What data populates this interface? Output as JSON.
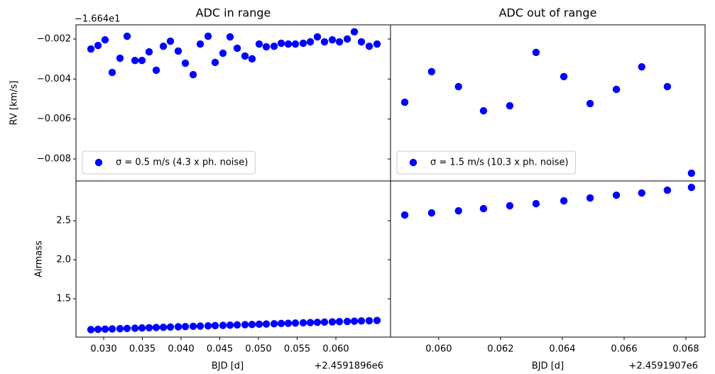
{
  "chart_data": [
    {
      "type": "scatter",
      "title": "ADC in range",
      "ylabel": "RV [km/s]",
      "y_offset_label": "−1.664e1",
      "xlim": [
        0.02642,
        0.06706
      ],
      "ylim": [
        -0.0091,
        -0.00129
      ],
      "yticks": [
        {
          "value": -0.002,
          "label": "−0.002"
        },
        {
          "value": -0.004,
          "label": "−0.004"
        },
        {
          "value": -0.006,
          "label": "−0.006"
        },
        {
          "value": -0.008,
          "label": "−0.008"
        }
      ],
      "legend": "lower left",
      "series": [
        {
          "name": "σ = 0.5 m/s (4.3 x ph. noise)",
          "color": "#0000ff",
          "x": [
            0.02835,
            0.02927,
            0.03018,
            0.0311,
            0.03211,
            0.03303,
            0.03404,
            0.03495,
            0.03587,
            0.03679,
            0.03771,
            0.03862,
            0.03963,
            0.04055,
            0.04156,
            0.04248,
            0.04349,
            0.0444,
            0.04541,
            0.04633,
            0.04725,
            0.04826,
            0.04917,
            0.05009,
            0.05101,
            0.05202,
            0.05294,
            0.05385,
            0.05477,
            0.05578,
            0.0567,
            0.05761,
            0.05853,
            0.05954,
            0.06046,
            0.06147,
            0.06239,
            0.0633,
            0.06431,
            0.06532
          ],
          "values": [
            -0.0025,
            -0.00232,
            -0.00204,
            -0.00367,
            -0.00296,
            -0.00186,
            -0.00307,
            -0.00307,
            -0.00264,
            -0.00356,
            -0.00236,
            -0.00211,
            -0.0026,
            -0.00321,
            -0.00378,
            -0.00225,
            -0.00186,
            -0.00317,
            -0.00271,
            -0.00189,
            -0.00246,
            -0.00285,
            -0.00299,
            -0.00225,
            -0.00239,
            -0.00236,
            -0.00221,
            -0.00225,
            -0.00225,
            -0.00221,
            -0.00214,
            -0.00189,
            -0.00214,
            -0.00204,
            -0.00214,
            -0.002,
            -0.00164,
            -0.00214,
            -0.00236,
            -0.00225
          ]
        }
      ]
    },
    {
      "type": "scatter",
      "title": "ADC out of range",
      "xlim": [
        0.05844,
        0.06862
      ],
      "ylim": [
        -0.0091,
        -0.00129
      ],
      "yticks": [
        -0.002,
        -0.004,
        -0.006,
        -0.008
      ],
      "ytick_labels": false,
      "legend": "lower left",
      "series": [
        {
          "name": "σ = 1.5 m/s (10.3 x ph. noise)",
          "color": "#0000ff",
          "x": [
            0.0589,
            0.05977,
            0.06064,
            0.06145,
            0.0623,
            0.06315,
            0.06405,
            0.0649,
            0.06575,
            0.06657,
            0.0674,
            0.06818
          ],
          "values": [
            -0.00516,
            -0.00363,
            -0.00438,
            -0.00559,
            -0.00534,
            -0.00267,
            -0.00388,
            -0.00523,
            -0.00452,
            -0.00339,
            -0.00438,
            -0.00871
          ]
        }
      ]
    },
    {
      "type": "scatter",
      "ylabel": "Airmass",
      "xlabel": "BJD [d]",
      "x_offset_label": "+2.4591896e6",
      "xlim": [
        0.02642,
        0.06706
      ],
      "ylim": [
        1.009,
        3.009
      ],
      "xticks": [
        {
          "value": 0.03,
          "label": "0.030"
        },
        0.035,
        {
          "value": 0.04,
          "label": "0.040"
        },
        0.045,
        {
          "value": 0.05,
          "label": "0.050"
        },
        0.055,
        {
          "value": 0.06,
          "label": "0.060"
        }
      ],
      "yticks": [
        1.5,
        {
          "value": 2,
          "label": "2.0"
        },
        2.5
      ],
      "series": [
        {
          "color": "#0000ff",
          "x": [
            0.02835,
            0.02927,
            0.03018,
            0.0311,
            0.03211,
            0.03303,
            0.03404,
            0.03495,
            0.03587,
            0.03679,
            0.03771,
            0.03862,
            0.03963,
            0.04055,
            0.04156,
            0.04248,
            0.04349,
            0.0444,
            0.04541,
            0.04633,
            0.04725,
            0.04826,
            0.04917,
            0.05009,
            0.05101,
            0.05202,
            0.05294,
            0.05385,
            0.05477,
            0.05578,
            0.0567,
            0.05761,
            0.05853,
            0.05954,
            0.06046,
            0.06147,
            0.06239,
            0.0633,
            0.06431,
            0.06532
          ],
          "values": [
            1.105,
            1.108,
            1.111,
            1.114,
            1.117,
            1.12,
            1.123,
            1.126,
            1.129,
            1.132,
            1.135,
            1.138,
            1.141,
            1.144,
            1.147,
            1.15,
            1.153,
            1.156,
            1.159,
            1.162,
            1.165,
            1.168,
            1.171,
            1.174,
            1.177,
            1.18,
            1.183,
            1.186,
            1.189,
            1.192,
            1.195,
            1.198,
            1.201,
            1.204,
            1.207,
            1.21,
            1.213,
            1.216,
            1.219,
            1.222
          ]
        }
      ]
    },
    {
      "type": "scatter",
      "xlabel": "BJD [d]",
      "x_offset_label": "+2.4591907e6",
      "xlim": [
        0.05844,
        0.06862
      ],
      "ylim": [
        1.009,
        3.009
      ],
      "xticks": [
        {
          "value": 0.06,
          "label": "0.060"
        },
        0.062,
        0.064,
        0.066,
        0.068
      ],
      "yticks": [
        1.5,
        2,
        2.5
      ],
      "ytick_labels": false,
      "series": [
        {
          "color": "#0000ff",
          "x": [
            0.0589,
            0.05977,
            0.06064,
            0.06145,
            0.0623,
            0.06315,
            0.06405,
            0.0649,
            0.06575,
            0.06657,
            0.0674,
            0.06818
          ],
          "values": [
            2.573,
            2.6,
            2.627,
            2.655,
            2.691,
            2.718,
            2.755,
            2.791,
            2.827,
            2.855,
            2.891,
            2.927
          ]
        }
      ]
    }
  ]
}
